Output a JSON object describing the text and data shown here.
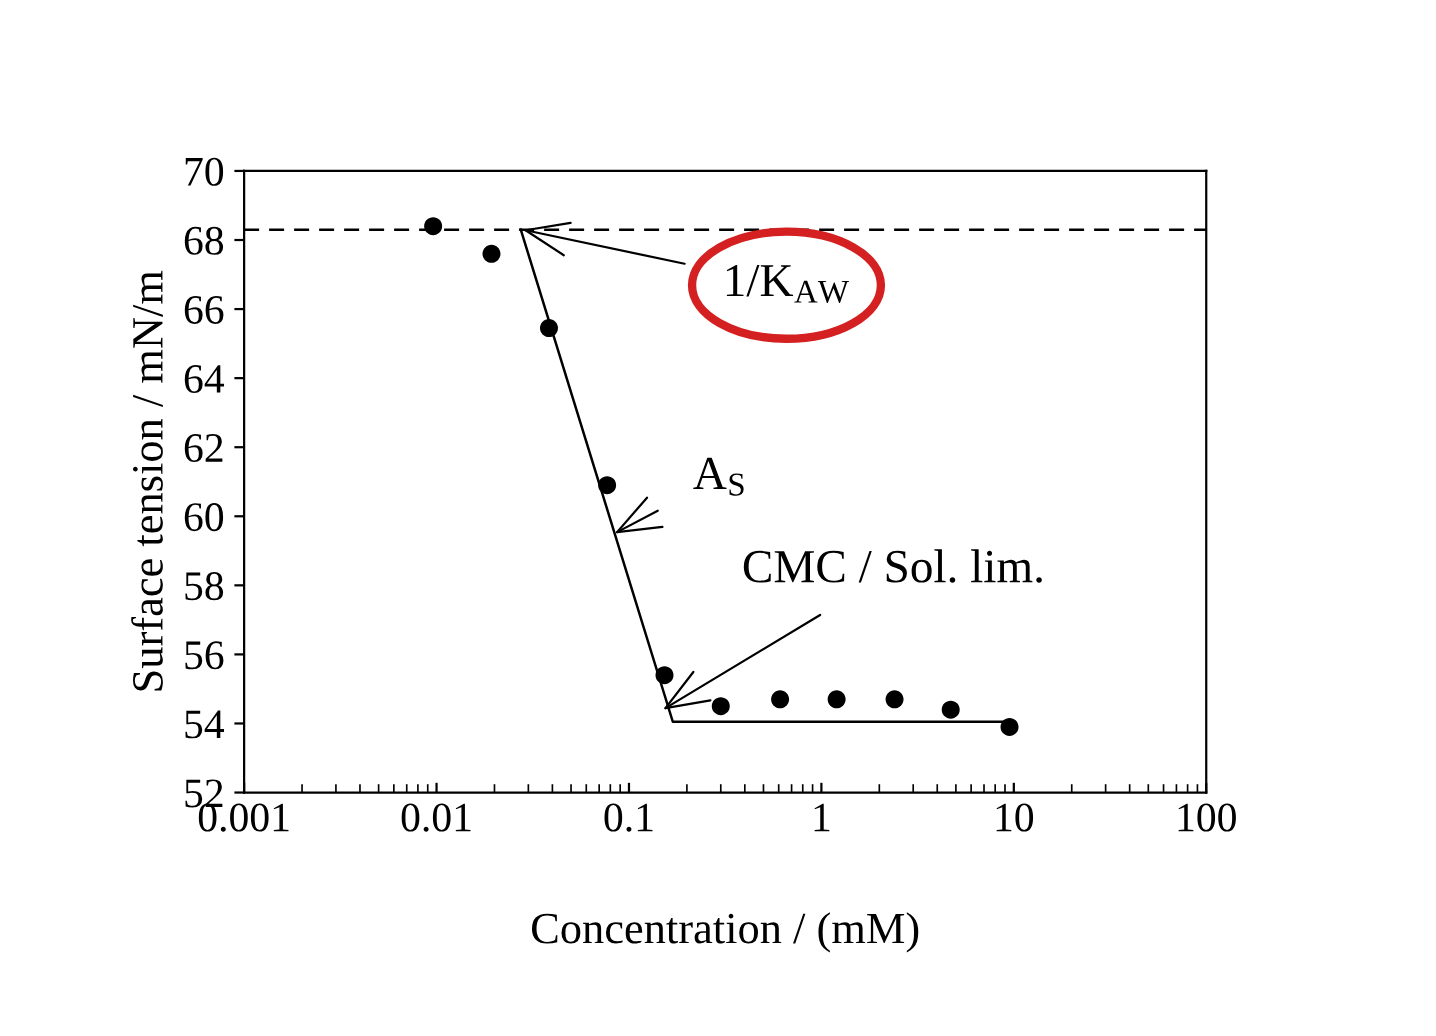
{
  "chart_data": {
    "type": "scatter",
    "xlabel": "Concentration / (mM)",
    "ylabel": "Surface tension / mN/m",
    "log": "x",
    "xlim": [
      0.001,
      100
    ],
    "xticks": [
      0.001,
      0.01,
      0.1,
      1,
      10,
      100
    ],
    "ylim": [
      52,
      70
    ],
    "yticks": [
      52,
      54,
      56,
      58,
      60,
      62,
      64,
      66,
      68,
      70
    ],
    "grid": false,
    "legend": false,
    "series": [
      {
        "color": "#000000",
        "marker": "circle",
        "x": [
          0.0096,
          0.0193,
          0.0384,
          0.077,
          0.153,
          0.3,
          0.61,
          1.2,
          2.4,
          4.7,
          9.5
        ],
        "values": [
          68.4,
          67.6,
          65.45,
          60.9,
          55.4,
          54.5,
          54.7,
          54.7,
          54.7,
          54.4,
          53.9
        ]
      },
      {
        "type": "line",
        "color": "#000000",
        "line_style": "solid",
        "marker": "none",
        "x": [
          0.0274,
          0.169,
          9.5
        ],
        "values": [
          68.3,
          54.05,
          54.05
        ]
      }
    ],
    "ref_lines": [
      {
        "axis": "y",
        "value": 68.3,
        "line_style": "dashed",
        "color": "#000000"
      }
    ],
    "annotations": [
      {
        "text": "1/K$_{AW}$",
        "x": 0.028,
        "y": 68.3
      },
      {
        "text": "A$_{S}$",
        "x": 0.084,
        "y": 59.5
      },
      {
        "text": "CMC / Sol. lim.",
        "x": 0.15,
        "y": 54.4
      }
    ]
  }
}
